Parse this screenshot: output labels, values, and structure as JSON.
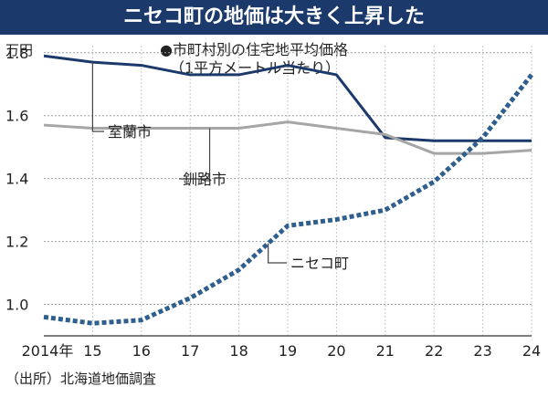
{
  "header": {
    "title": "ニセコ町の地価は大きく上昇した"
  },
  "chart_data": {
    "type": "line",
    "title": "●市町村別の住宅地平均価格",
    "subtitle": "（1平方メートル当たり）",
    "ylabel": "万円",
    "xlabel": "",
    "source": "（出所）北海道地価調査",
    "x": [
      2014,
      2015,
      2016,
      2017,
      2018,
      2019,
      2020,
      2021,
      2022,
      2023,
      2024
    ],
    "x_tick_labels": [
      "2014年",
      "15",
      "16",
      "17",
      "18",
      "19",
      "20",
      "21",
      "22",
      "23",
      "24"
    ],
    "y_ticks": [
      1.0,
      1.2,
      1.4,
      1.6,
      1.8
    ],
    "y_tick_labels": [
      "1.0",
      "1.2",
      "1.4",
      "1.6",
      "1.8"
    ],
    "ylim": [
      0.9,
      1.84
    ],
    "grid": true,
    "series": [
      {
        "name": "室蘭市",
        "color": "#1b3a6b",
        "style": "solid",
        "values": [
          1.79,
          1.77,
          1.76,
          1.73,
          1.73,
          1.76,
          1.73,
          1.53,
          1.52,
          1.52,
          1.52
        ]
      },
      {
        "name": "釧路市",
        "color": "#a6a6a6",
        "style": "solid",
        "values": [
          1.57,
          1.56,
          1.56,
          1.56,
          1.56,
          1.58,
          1.56,
          1.54,
          1.48,
          1.48,
          1.49
        ]
      },
      {
        "name": "ニセコ町",
        "color": "#2f5f8e",
        "style": "dotted",
        "values": [
          0.96,
          0.94,
          0.95,
          1.02,
          1.11,
          1.25,
          1.27,
          1.3,
          1.39,
          1.53,
          1.73
        ]
      }
    ]
  }
}
